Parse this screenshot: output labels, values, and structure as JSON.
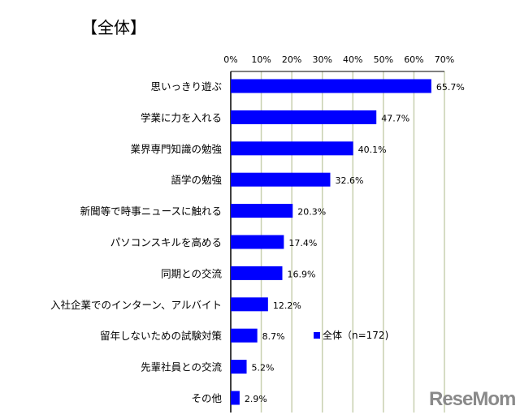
{
  "title": "【全体】",
  "logo_text": "ReseMom",
  "chart_data": {
    "type": "bar",
    "orientation": "horizontal",
    "title": "【全体】",
    "categories": [
      "思いっきり遊ぶ",
      "学業に力を入れる",
      "業界専門知識の勉強",
      "語学の勉強",
      "新聞等で時事ニュースに触れる",
      "パソコンスキルを高める",
      "同期との交流",
      "入社企業でのインターン、アルバイト",
      "留年しないための試験対策",
      "先輩社員との交流",
      "その他"
    ],
    "series": [
      {
        "name": "全体（n=172)",
        "values": [
          65.7,
          47.7,
          40.1,
          32.6,
          20.3,
          17.4,
          16.9,
          12.2,
          8.7,
          5.2,
          2.9
        ],
        "color": "#0000ff"
      }
    ],
    "data_labels": [
      "65.7%",
      "47.7%",
      "40.1%",
      "32.6%",
      "20.3%",
      "17.4%",
      "16.9%",
      "12.2%",
      "8.7%",
      "5.2%",
      "2.9%"
    ],
    "xlim": [
      0,
      70
    ],
    "xticks": [
      "0%",
      "10%",
      "20%",
      "30%",
      "40%",
      "50%",
      "60%",
      "70%"
    ],
    "xtick_values": [
      0,
      10,
      20,
      30,
      40,
      50,
      60,
      70
    ],
    "grid": true,
    "legend_position": "bottom-right-inside",
    "gridline_color": "#c8d0b0"
  }
}
